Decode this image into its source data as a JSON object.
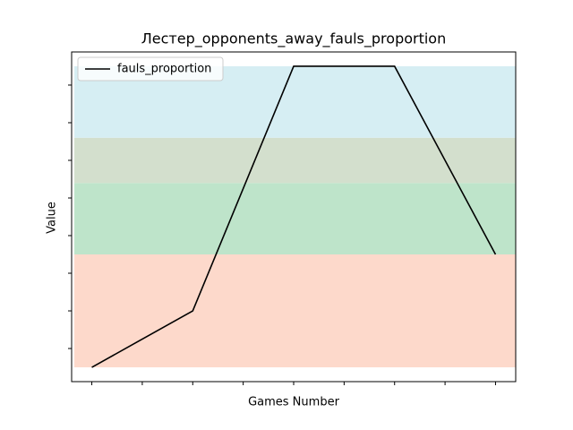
{
  "chart_data": {
    "type": "line",
    "title": "Лестер_opponents_away_fauls_proportion",
    "xlabel": "Games Number",
    "ylabel": "Value",
    "x": [
      0,
      1,
      2,
      3,
      4
    ],
    "series": [
      {
        "name": "fauls_proportion",
        "color": "#000000",
        "values": [
          0.375,
          0.45,
          0.775,
          0.775,
          0.525
        ]
      }
    ],
    "bands": [
      {
        "from": 0.375,
        "to": 0.525,
        "color": "#fdd9cb"
      },
      {
        "from": 0.525,
        "to": 0.62,
        "color": "#bee4ca"
      },
      {
        "from": 0.62,
        "to": 0.68,
        "color": "#d3dfcd"
      },
      {
        "from": 0.68,
        "to": 0.775,
        "color": "#d6eef3"
      }
    ],
    "xlim": [
      -0.2,
      4.2
    ],
    "ylim": [
      0.356,
      0.794
    ],
    "xticks": [
      0,
      0.5,
      1,
      1.5,
      2,
      2.5,
      3,
      3.5,
      4
    ],
    "yticks": [
      0.4,
      0.45,
      0.5,
      0.55,
      0.6,
      0.65,
      0.7,
      0.75
    ],
    "legend": "upper left"
  }
}
